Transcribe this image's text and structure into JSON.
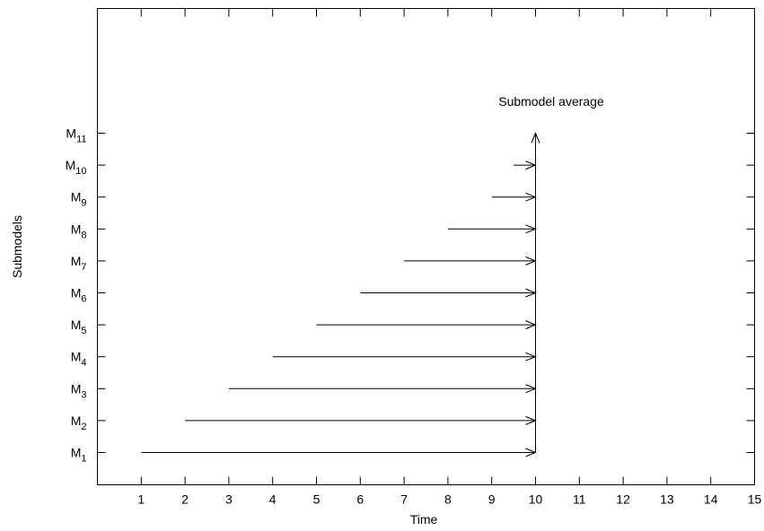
{
  "chart_data": {
    "type": "line",
    "title": "",
    "xlabel": "Time",
    "ylabel": "Submodels",
    "xlim": [
      0,
      15
    ],
    "x_ticks": [
      1,
      2,
      3,
      4,
      5,
      6,
      7,
      8,
      9,
      10,
      11,
      12,
      13,
      14,
      15
    ],
    "y_ticks": [
      {
        "base": "M",
        "sub": "1"
      },
      {
        "base": "M",
        "sub": "2"
      },
      {
        "base": "M",
        "sub": "3"
      },
      {
        "base": "M",
        "sub": "4"
      },
      {
        "base": "M",
        "sub": "5"
      },
      {
        "base": "M",
        "sub": "6"
      },
      {
        "base": "M",
        "sub": "7"
      },
      {
        "base": "M",
        "sub": "8"
      },
      {
        "base": "M",
        "sub": "9"
      },
      {
        "base": "M",
        "sub": "10"
      },
      {
        "base": "M",
        "sub": "11"
      }
    ],
    "grid": false,
    "arrow_color": "#000000",
    "segments": [
      {
        "submodel": "M1",
        "x_start": 1,
        "x_end": 10
      },
      {
        "submodel": "M2",
        "x_start": 2,
        "x_end": 10
      },
      {
        "submodel": "M3",
        "x_start": 3,
        "x_end": 10
      },
      {
        "submodel": "M4",
        "x_start": 4,
        "x_end": 10
      },
      {
        "submodel": "M5",
        "x_start": 5,
        "x_end": 10
      },
      {
        "submodel": "M6",
        "x_start": 6,
        "x_end": 10
      },
      {
        "submodel": "M7",
        "x_start": 7,
        "x_end": 10
      },
      {
        "submodel": "M8",
        "x_start": 8,
        "x_end": 10
      },
      {
        "submodel": "M9",
        "x_start": 9,
        "x_end": 10
      },
      {
        "submodel": "M10",
        "x_start": 9.5,
        "x_end": 10
      }
    ],
    "average_arrow": {
      "x": 10,
      "from": "M1",
      "to": "M11"
    },
    "annotation": "Submodel average"
  }
}
